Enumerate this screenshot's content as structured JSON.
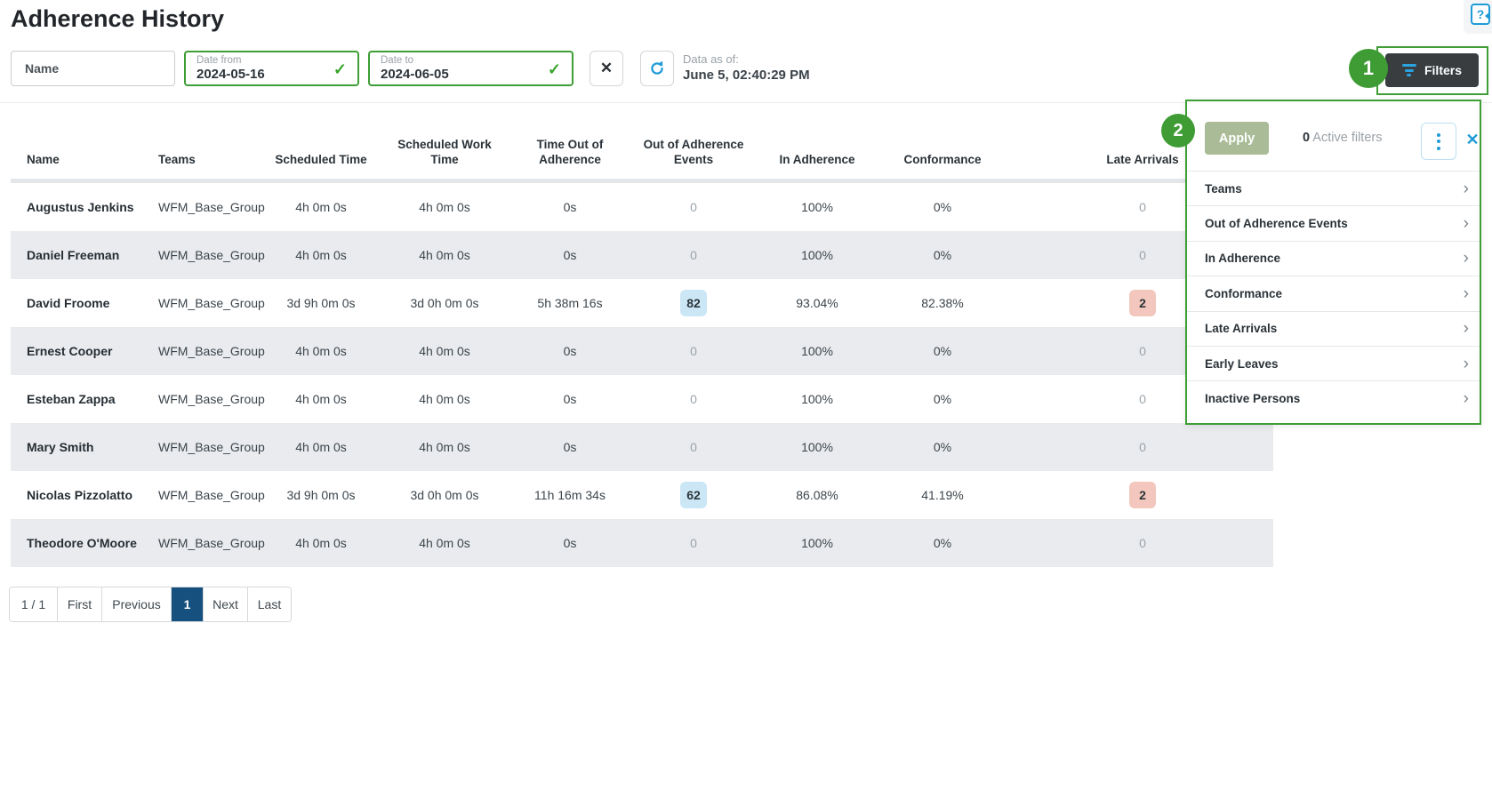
{
  "colors": {
    "green": "#3f9e36",
    "blue": "#1f9bd7",
    "navy": "#15507e",
    "sage": "#a9bc97",
    "pill-blue": "#cbe7f6",
    "pill-red": "#f3c7bd",
    "btn-dark": "#393d40"
  },
  "icons": {
    "help": "?",
    "check": "✓",
    "clear": "✕",
    "close": "✕",
    "chevron_right": "›"
  },
  "page": {
    "title": "Adherence History"
  },
  "toolbar": {
    "name_placeholder": "Name",
    "date_from_label": "Date from",
    "date_from_value": "2024-05-16",
    "date_to_label": "Date to",
    "date_to_value": "2024-06-05",
    "data_as_of_label": "Data as of:",
    "data_as_of_value": "June 5, 02:40:29 PM",
    "filters_label": "Filters"
  },
  "callouts": {
    "filters_button": "1",
    "filters_panel": "2"
  },
  "filter_panel": {
    "apply_label": "Apply",
    "active_count": "0",
    "active_suffix": " Active filters",
    "items": [
      "Teams",
      "Out of Adherence Events",
      "In Adherence",
      "Conformance",
      "Late Arrivals",
      "Early Leaves",
      "Inactive Persons"
    ]
  },
  "table": {
    "columns": [
      {
        "label": "Name",
        "align": "left"
      },
      {
        "label": "Teams",
        "align": "left"
      },
      {
        "label": "Scheduled Time",
        "align": "center"
      },
      {
        "label": "Scheduled Work Time",
        "align": "center"
      },
      {
        "label": "Time Out of Adherence",
        "align": "center"
      },
      {
        "label": "Out of Adherence Events",
        "align": "center"
      },
      {
        "label": "In Adherence",
        "align": "center"
      },
      {
        "label": "Conformance",
        "align": "center"
      },
      {
        "label": "Late Arrivals",
        "align": "center"
      }
    ],
    "rows": [
      {
        "name": "Augustus Jenkins",
        "teams": "WFM_Base_Group",
        "scheduled_time": "4h 0m 0s",
        "scheduled_work_time": "4h 0m 0s",
        "time_out_of_adherence": "0s",
        "out_of_adherence_events": "0",
        "in_adherence": "100%",
        "conformance": "0%",
        "late_arrivals": "0"
      },
      {
        "name": "Daniel Freeman",
        "teams": "WFM_Base_Group",
        "scheduled_time": "4h 0m 0s",
        "scheduled_work_time": "4h 0m 0s",
        "time_out_of_adherence": "0s",
        "out_of_adherence_events": "0",
        "in_adherence": "100%",
        "conformance": "0%",
        "late_arrivals": "0"
      },
      {
        "name": "David Froome",
        "teams": "WFM_Base_Group",
        "scheduled_time": "3d 9h 0m 0s",
        "scheduled_work_time": "3d 0h 0m 0s",
        "time_out_of_adherence": "5h 38m 16s",
        "out_of_adherence_events": "82",
        "in_adherence": "93.04%",
        "conformance": "82.38%",
        "late_arrivals": "2"
      },
      {
        "name": "Ernest Cooper",
        "teams": "WFM_Base_Group",
        "scheduled_time": "4h 0m 0s",
        "scheduled_work_time": "4h 0m 0s",
        "time_out_of_adherence": "0s",
        "out_of_adherence_events": "0",
        "in_adherence": "100%",
        "conformance": "0%",
        "late_arrivals": "0"
      },
      {
        "name": "Esteban Zappa",
        "teams": "WFM_Base_Group",
        "scheduled_time": "4h 0m 0s",
        "scheduled_work_time": "4h 0m 0s",
        "time_out_of_adherence": "0s",
        "out_of_adherence_events": "0",
        "in_adherence": "100%",
        "conformance": "0%",
        "late_arrivals": "0"
      },
      {
        "name": "Mary Smith",
        "teams": "WFM_Base_Group",
        "scheduled_time": "4h 0m 0s",
        "scheduled_work_time": "4h 0m 0s",
        "time_out_of_adherence": "0s",
        "out_of_adherence_events": "0",
        "in_adherence": "100%",
        "conformance": "0%",
        "late_arrivals": "0"
      },
      {
        "name": "Nicolas Pizzolatto",
        "teams": "WFM_Base_Group",
        "scheduled_time": "3d 9h 0m 0s",
        "scheduled_work_time": "3d 0h 0m 0s",
        "time_out_of_adherence": "11h 16m 34s",
        "out_of_adherence_events": "62",
        "in_adherence": "86.08%",
        "conformance": "41.19%",
        "late_arrivals": "2"
      },
      {
        "name": "Theodore O'Moore",
        "teams": "WFM_Base_Group",
        "scheduled_time": "4h 0m 0s",
        "scheduled_work_time": "4h 0m 0s",
        "time_out_of_adherence": "0s",
        "out_of_adherence_events": "0",
        "in_adherence": "100%",
        "conformance": "0%",
        "late_arrivals": "0"
      }
    ]
  },
  "pagination": {
    "summary": "1 / 1",
    "first": "First",
    "previous": "Previous",
    "page": "1",
    "next": "Next",
    "last": "Last"
  }
}
